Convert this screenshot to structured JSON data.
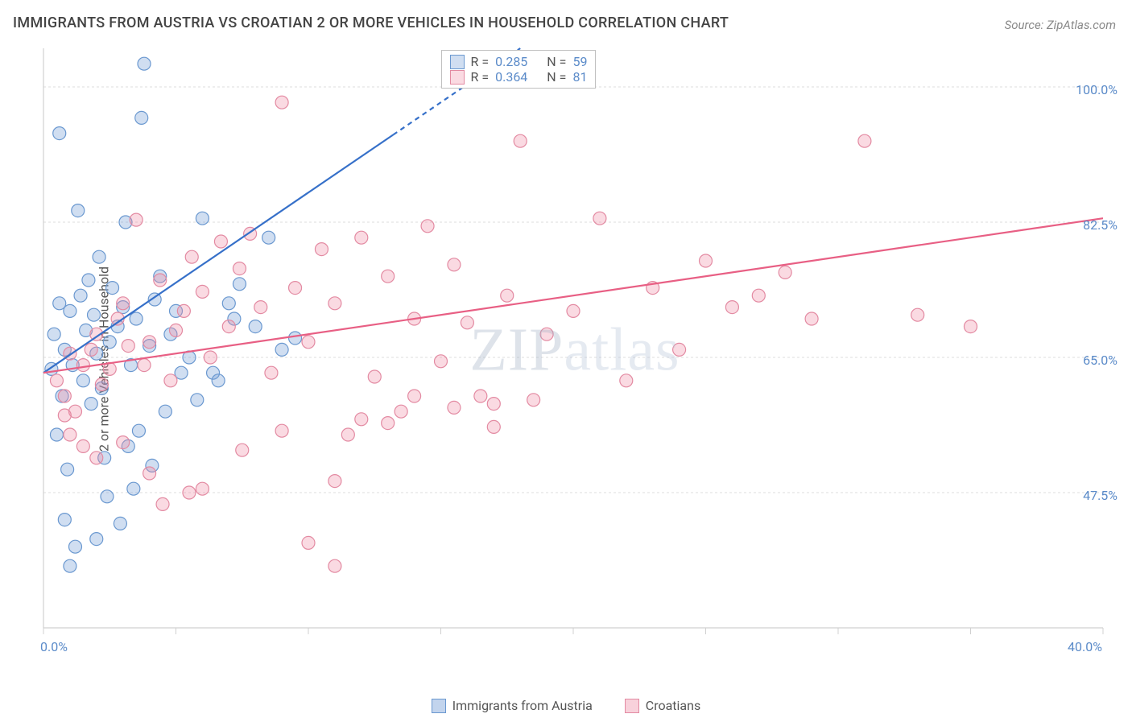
{
  "title": "IMMIGRANTS FROM AUSTRIA VS CROATIAN 2 OR MORE VEHICLES IN HOUSEHOLD CORRELATION CHART",
  "source": "Source: ZipAtlas.com",
  "watermark": "ZIPatlas",
  "chart": {
    "type": "scatter",
    "y_label": "2 or more Vehicles in Household",
    "x_range": [
      0,
      40
    ],
    "y_range": [
      30,
      105
    ],
    "x_ticks": [
      0,
      5,
      10,
      15,
      20,
      25,
      30,
      35,
      40
    ],
    "x_tick_labels_visible": {
      "0": "0.0%",
      "40": "40.0%"
    },
    "y_gridlines": [
      47.5,
      65.0,
      82.5,
      100.0
    ],
    "y_grid_labels": [
      "47.5%",
      "65.0%",
      "82.5%",
      "100.0%"
    ],
    "grid_color": "#dcdcdc",
    "axis_color": "#d0d0d0",
    "background_color": "#ffffff",
    "series": [
      {
        "name": "Immigrants from Austria",
        "marker_fill": "rgba(120,160,215,0.35)",
        "marker_stroke": "#6a98d0",
        "marker_radius": 8,
        "line_color": "#3670c9",
        "line_width": 2.2,
        "trend": {
          "x1": 0,
          "y1": 63,
          "x2": 18,
          "y2": 105
        },
        "trend_dash_after_x": 13.2,
        "R": 0.285,
        "N": 59,
        "points": [
          [
            0.3,
            63.5
          ],
          [
            0.4,
            68.0
          ],
          [
            0.5,
            55.0
          ],
          [
            0.6,
            72.0
          ],
          [
            0.7,
            60.0
          ],
          [
            0.8,
            66.0
          ],
          [
            0.9,
            50.5
          ],
          [
            1.0,
            71.0
          ],
          [
            1.1,
            64.0
          ],
          [
            1.3,
            84.0
          ],
          [
            1.4,
            73.0
          ],
          [
            1.5,
            62.0
          ],
          [
            1.6,
            68.5
          ],
          [
            1.7,
            75.0
          ],
          [
            1.8,
            59.0
          ],
          [
            1.9,
            70.5
          ],
          [
            2.0,
            65.5
          ],
          [
            2.1,
            78.0
          ],
          [
            2.2,
            61.0
          ],
          [
            2.3,
            52.0
          ],
          [
            2.5,
            67.0
          ],
          [
            2.6,
            74.0
          ],
          [
            2.8,
            69.0
          ],
          [
            3.0,
            71.5
          ],
          [
            3.1,
            82.5
          ],
          [
            3.3,
            64.0
          ],
          [
            3.5,
            70.0
          ],
          [
            3.7,
            96.0
          ],
          [
            3.8,
            103.0
          ],
          [
            4.0,
            66.5
          ],
          [
            4.2,
            72.5
          ],
          [
            4.4,
            75.5
          ],
          [
            4.8,
            68.0
          ],
          [
            5.0,
            71.0
          ],
          [
            5.5,
            65.0
          ],
          [
            6.0,
            83.0
          ],
          [
            6.4,
            63.0
          ],
          [
            7.0,
            72.0
          ],
          [
            7.4,
            74.5
          ],
          [
            8.0,
            69.0
          ],
          [
            8.5,
            80.5
          ],
          [
            9.0,
            66.0
          ],
          [
            9.5,
            67.5
          ],
          [
            0.8,
            44.0
          ],
          [
            1.2,
            40.5
          ],
          [
            2.4,
            47.0
          ],
          [
            2.9,
            43.5
          ],
          [
            3.2,
            53.5
          ],
          [
            3.6,
            55.5
          ],
          [
            4.1,
            51.0
          ],
          [
            4.6,
            58.0
          ],
          [
            5.2,
            63.0
          ],
          [
            5.8,
            59.5
          ],
          [
            6.6,
            62.0
          ],
          [
            7.2,
            70.0
          ],
          [
            1.0,
            38.0
          ],
          [
            2.0,
            41.5
          ],
          [
            3.4,
            48.0
          ],
          [
            0.6,
            94.0
          ]
        ]
      },
      {
        "name": "Croatians",
        "marker_fill": "rgba(238,140,165,0.32)",
        "marker_stroke": "#e38aa2",
        "marker_radius": 8,
        "line_color": "#e85f84",
        "line_width": 2.2,
        "trend": {
          "x1": 0,
          "y1": 63,
          "x2": 40,
          "y2": 83
        },
        "R": 0.364,
        "N": 81,
        "points": [
          [
            0.5,
            62.0
          ],
          [
            0.8,
            60.0
          ],
          [
            1.0,
            65.5
          ],
          [
            1.2,
            58.0
          ],
          [
            1.5,
            64.0
          ],
          [
            1.8,
            66.0
          ],
          [
            2.0,
            68.0
          ],
          [
            2.2,
            61.5
          ],
          [
            2.5,
            63.5
          ],
          [
            2.8,
            70.0
          ],
          [
            3.0,
            72.0
          ],
          [
            3.2,
            66.5
          ],
          [
            3.5,
            82.8
          ],
          [
            3.8,
            64.0
          ],
          [
            4.0,
            67.0
          ],
          [
            4.4,
            75.0
          ],
          [
            4.8,
            62.0
          ],
          [
            5.0,
            68.5
          ],
          [
            5.3,
            71.0
          ],
          [
            5.6,
            78.0
          ],
          [
            6.0,
            73.5
          ],
          [
            6.3,
            65.0
          ],
          [
            6.7,
            80.0
          ],
          [
            7.0,
            69.0
          ],
          [
            7.4,
            76.5
          ],
          [
            7.8,
            81.0
          ],
          [
            8.2,
            71.5
          ],
          [
            8.6,
            63.0
          ],
          [
            9.0,
            98.0
          ],
          [
            9.5,
            74.0
          ],
          [
            10.0,
            67.0
          ],
          [
            10.5,
            79.0
          ],
          [
            11.0,
            72.0
          ],
          [
            11.5,
            55.0
          ],
          [
            12.0,
            80.5
          ],
          [
            12.5,
            62.5
          ],
          [
            13.0,
            75.5
          ],
          [
            13.5,
            58.0
          ],
          [
            14.0,
            70.0
          ],
          [
            14.5,
            82.0
          ],
          [
            15.0,
            64.5
          ],
          [
            15.5,
            77.0
          ],
          [
            16.0,
            69.5
          ],
          [
            16.5,
            60.0
          ],
          [
            17.0,
            59.0
          ],
          [
            17.5,
            73.0
          ],
          [
            18.0,
            93.0
          ],
          [
            19.0,
            68.0
          ],
          [
            20.0,
            71.0
          ],
          [
            21.0,
            83.0
          ],
          [
            22.0,
            62.0
          ],
          [
            23.0,
            74.0
          ],
          [
            24.0,
            66.0
          ],
          [
            25.0,
            77.5
          ],
          [
            26.0,
            71.5
          ],
          [
            27.0,
            73.0
          ],
          [
            28.0,
            76.0
          ],
          [
            29.0,
            70.0
          ],
          [
            31.0,
            93.0
          ],
          [
            33.0,
            70.5
          ],
          [
            35.0,
            69.0
          ],
          [
            4.5,
            46.0
          ],
          [
            6.0,
            48.0
          ],
          [
            7.5,
            53.0
          ],
          [
            9.0,
            55.5
          ],
          [
            10.0,
            41.0
          ],
          [
            11.0,
            49.0
          ],
          [
            12.0,
            57.0
          ],
          [
            13.0,
            56.5
          ],
          [
            14.0,
            60.0
          ],
          [
            15.5,
            58.5
          ],
          [
            17.0,
            56.0
          ],
          [
            18.5,
            59.5
          ],
          [
            2.0,
            52.0
          ],
          [
            3.0,
            54.0
          ],
          [
            4.0,
            50.0
          ],
          [
            5.5,
            47.5
          ],
          [
            1.0,
            55.0
          ],
          [
            1.5,
            53.5
          ],
          [
            0.8,
            57.5
          ],
          [
            11.0,
            38.0
          ]
        ]
      }
    ],
    "legend_bottom": [
      {
        "label": "Immigrants from Austria",
        "fill": "rgba(120,160,215,0.45)",
        "stroke": "#6a98d0"
      },
      {
        "label": "Croatians",
        "fill": "rgba(238,140,165,0.4)",
        "stroke": "#e38aa2"
      }
    ]
  }
}
